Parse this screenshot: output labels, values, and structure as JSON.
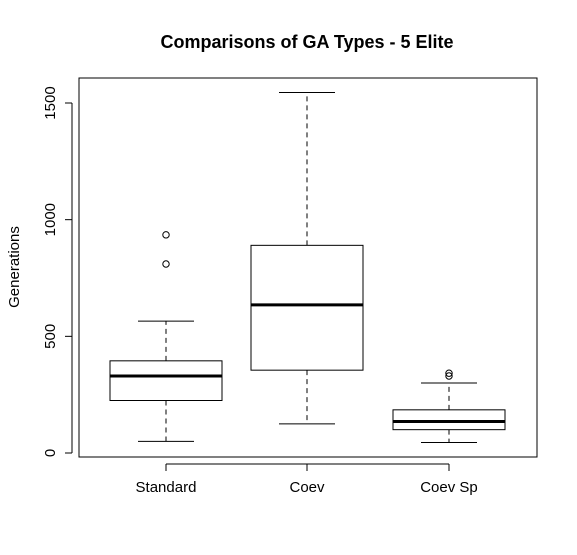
{
  "chart_data": {
    "type": "boxplot",
    "title": "Comparisons of GA Types - 5 Elite",
    "xlabel": "",
    "ylabel": "Generations",
    "ylim": [
      0,
      1550
    ],
    "yticks": [
      "0",
      "500",
      "1000",
      "1500"
    ],
    "categories": [
      "Standard",
      "Coev",
      "Coev Sp"
    ],
    "boxes": [
      {
        "category": "Standard",
        "whisker_low": 50,
        "q1": 225,
        "median": 330,
        "q3": 395,
        "whisker_high": 565,
        "outliers": [
          810,
          935
        ]
      },
      {
        "category": "Coev",
        "whisker_low": 125,
        "q1": 355,
        "median": 635,
        "q3": 890,
        "whisker_high": 1545,
        "outliers": []
      },
      {
        "category": "Coev Sp",
        "whisker_low": 45,
        "q1": 100,
        "median": 135,
        "q3": 185,
        "whisker_high": 300,
        "outliers": [
          330,
          342
        ]
      }
    ],
    "grid": false,
    "legend": "none"
  }
}
